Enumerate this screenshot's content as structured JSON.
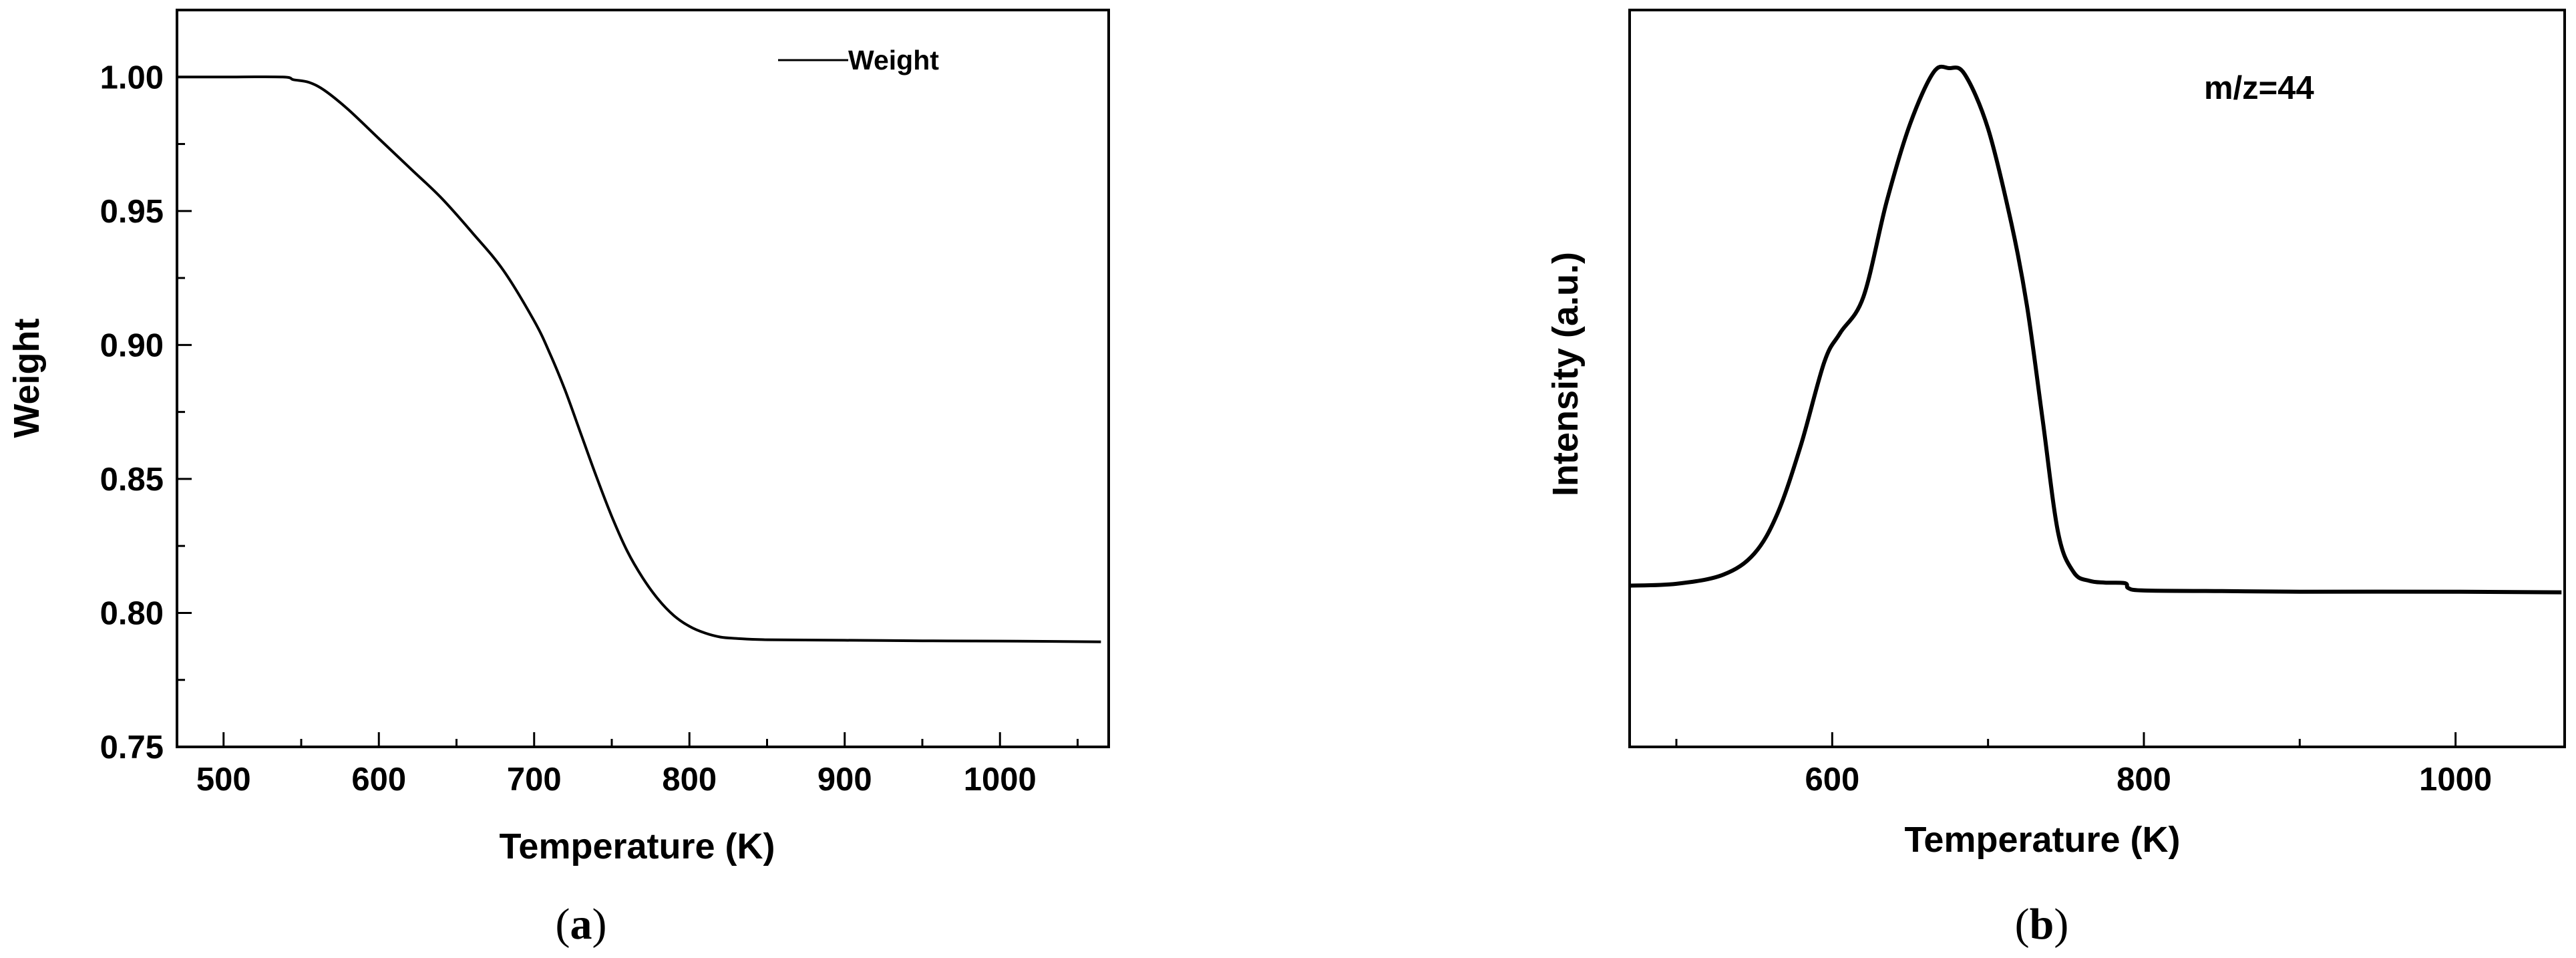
{
  "chart_data": [
    {
      "type": "line",
      "panel_label": "a",
      "xlabel": "Temperature (K)",
      "ylabel": "Weight",
      "xlim": [
        470,
        1070
      ],
      "ylim": [
        0.75,
        1.025
      ],
      "xticks": [
        500,
        600,
        700,
        800,
        900,
        1000
      ],
      "yticks": [
        0.75,
        0.8,
        0.85,
        0.9,
        0.95,
        1.0
      ],
      "ytick_labels": [
        "0.75",
        "0.80",
        "0.85",
        "0.90",
        "0.95",
        "1.00"
      ],
      "grid": false,
      "legend_position": "top-right",
      "series": [
        {
          "name": "Weight",
          "x": [
            470,
            500,
            538,
            545,
            555,
            565,
            580,
            600,
            620,
            640,
            660,
            680,
            700,
            710,
            720,
            730,
            740,
            750,
            760,
            770,
            780,
            790,
            800,
            810,
            820,
            830,
            850,
            900,
            950,
            1000,
            1065
          ],
          "y": [
            1.0,
            1.0,
            1.0,
            0.999,
            0.998,
            0.995,
            0.988,
            0.977,
            0.966,
            0.955,
            0.942,
            0.928,
            0.909,
            0.897,
            0.883,
            0.867,
            0.851,
            0.836,
            0.823,
            0.813,
            0.805,
            0.799,
            0.795,
            0.7925,
            0.791,
            0.7905,
            0.79,
            0.7898,
            0.7896,
            0.7895,
            0.7892
          ]
        }
      ]
    },
    {
      "type": "line",
      "panel_label": "b",
      "xlabel": "Temperature (K)",
      "ylabel": "Intensity (a.u.)",
      "annotation": "m/z=44",
      "xlim": [
        470,
        1070
      ],
      "ylim": [
        0,
        1
      ],
      "xticks": [
        600,
        800,
        1000
      ],
      "yticks": [],
      "grid": false,
      "series": [
        {
          "name": "",
          "x": [
            470,
            500,
            530,
            550,
            565,
            580,
            595,
            605,
            620,
            635,
            650,
            665,
            675,
            685,
            700,
            715,
            725,
            735,
            745,
            755,
            765,
            775,
            788,
            790,
            800,
            850,
            900,
            1000,
            1068
          ],
          "y": [
            0.145,
            0.148,
            0.163,
            0.198,
            0.265,
            0.378,
            0.515,
            0.562,
            0.622,
            0.78,
            0.908,
            0.993,
            1.0,
            0.99,
            0.9,
            0.743,
            0.607,
            0.42,
            0.232,
            0.167,
            0.153,
            0.15,
            0.149,
            0.141,
            0.137,
            0.136,
            0.135,
            0.135,
            0.134
          ]
        }
      ]
    }
  ]
}
